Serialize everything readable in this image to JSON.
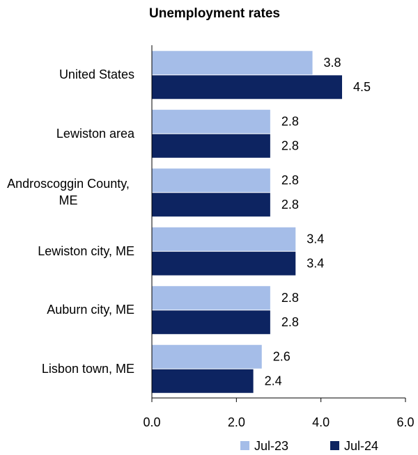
{
  "chart_data": {
    "type": "bar",
    "orientation": "horizontal",
    "title": "Unemployment rates",
    "categories": [
      "United States",
      "Lewiston area",
      "Androscoggin County, ME",
      "Lewiston city, ME",
      "Auburn city, ME",
      "Lisbon town, ME"
    ],
    "series": [
      {
        "name": "Jul-23",
        "color": "#a5bde8",
        "values": [
          3.8,
          2.8,
          2.8,
          3.4,
          2.8,
          2.6
        ]
      },
      {
        "name": "Jul-24",
        "color": "#0d2461",
        "values": [
          4.5,
          2.8,
          2.8,
          3.4,
          2.8,
          2.4
        ]
      }
    ],
    "xlim": [
      0,
      6
    ],
    "xticks": [
      {
        "value": 0,
        "label": "0.0"
      },
      {
        "value": 2,
        "label": "2.0"
      },
      {
        "value": 4,
        "label": "4.0"
      },
      {
        "value": 6,
        "label": "6.0"
      }
    ],
    "legend": "bottom"
  }
}
